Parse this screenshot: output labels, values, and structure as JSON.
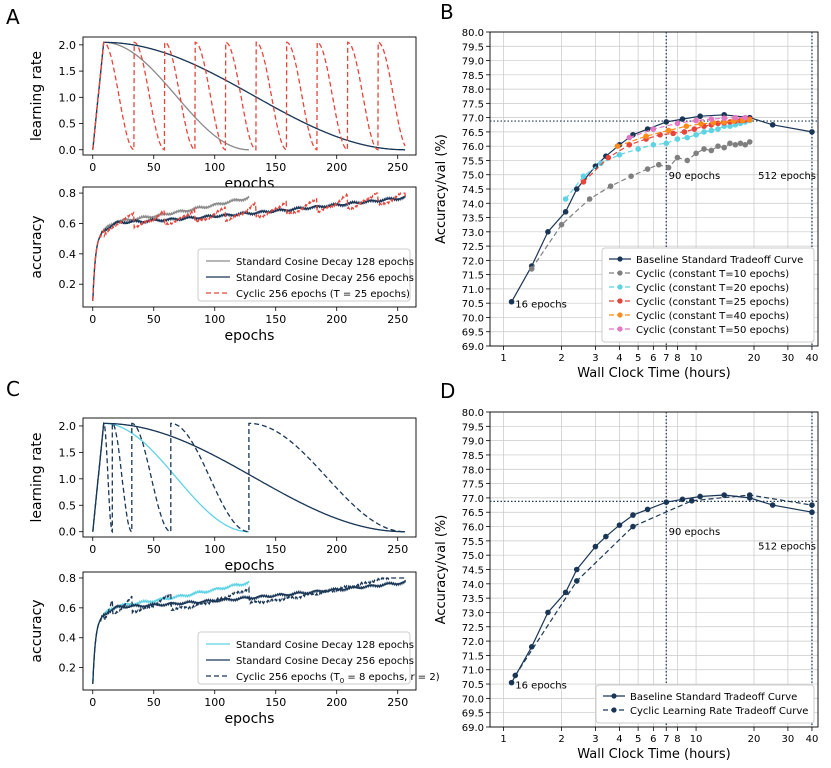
{
  "colors": {
    "navy": "#1a3656",
    "gray": "#8a8a8a",
    "red_dashed": "#e8443a",
    "cyan": "#5fd3e4",
    "cyc10": "#7f7f7f",
    "cyc20": "#5fd3e4",
    "cyc25": "#e8443a",
    "cyc40": "#ff8c1a",
    "cyc50": "#e377c2",
    "grid": "#c8c8c8",
    "vline": "#1a3656"
  },
  "panels": {
    "A": {
      "letter": "A"
    },
    "B": {
      "letter": "B"
    },
    "C": {
      "letter": "C"
    },
    "D": {
      "letter": "D"
    }
  },
  "chart_data": [
    {
      "id": "A_top",
      "type": "line",
      "xlabel": "epochs",
      "ylabel": "learning rate",
      "xlim": [
        -8,
        265
      ],
      "ylim": [
        -0.1,
        2.15
      ],
      "xticks": [
        0,
        50,
        100,
        150,
        200,
        250
      ],
      "yticks": [
        0.0,
        0.5,
        1.0,
        1.5,
        2.0
      ],
      "ytick_labels": [
        "0.0",
        "0.5",
        "1.0",
        "1.5",
        "2.0"
      ],
      "series": [
        {
          "name": "Standard Cosine Decay 128 epochs",
          "kind": "cosine",
          "warmup": 9,
          "peak": 2.048,
          "end": 128,
          "color": "gray",
          "dash": "solid"
        },
        {
          "name": "Standard Cosine Decay 256 epochs",
          "kind": "cosine",
          "warmup": 9,
          "peak": 2.048,
          "end": 256,
          "color": "navy",
          "dash": "solid"
        },
        {
          "name": "Cyclic 256 epochs (T = 25 epochs)",
          "kind": "cyclic",
          "warmup": 9,
          "peak": 2.048,
          "end": 256,
          "period": 25,
          "color": "red_dashed",
          "dash": "dashed"
        }
      ]
    },
    {
      "id": "A_bottom",
      "type": "line",
      "xlabel": "epochs",
      "ylabel": "accuracy",
      "xlim": [
        -8,
        265
      ],
      "ylim": [
        0.05,
        0.84
      ],
      "xticks": [
        0,
        50,
        100,
        150,
        200,
        250
      ],
      "yticks": [
        0.2,
        0.4,
        0.6,
        0.8
      ],
      "ytick_labels": [
        "0.2",
        "0.4",
        "0.6",
        "0.8"
      ],
      "legend_position": "lower-right",
      "series": [
        {
          "name": "Standard Cosine Decay 128 epochs",
          "legend": "Standard Cosine Decay 128 epochs",
          "end": 128,
          "final": 0.77,
          "color": "gray",
          "dash": "solid"
        },
        {
          "name": "Standard Cosine Decay 256 epochs",
          "legend": "Standard Cosine Decay 256 epochs",
          "end": 256,
          "final": 0.77,
          "color": "navy",
          "dash": "solid"
        },
        {
          "name": "Cyclic 256 epochs (T = 25 epochs)",
          "legend": "Cyclic 256 epochs (T = 25 epochs)",
          "end": 256,
          "final": 0.77,
          "period": 25,
          "color": "red_dashed",
          "dash": "dashed"
        }
      ]
    },
    {
      "id": "C_top",
      "type": "line",
      "xlabel": "epochs",
      "ylabel": "learning rate",
      "xlim": [
        -8,
        265
      ],
      "ylim": [
        -0.1,
        2.15
      ],
      "xticks": [
        0,
        50,
        100,
        150,
        200,
        250
      ],
      "yticks": [
        0.0,
        0.5,
        1.0,
        1.5,
        2.0
      ],
      "ytick_labels": [
        "0.0",
        "0.5",
        "1.0",
        "1.5",
        "2.0"
      ],
      "series": [
        {
          "name": "Standard Cosine Decay 128 epochs",
          "kind": "cosine",
          "warmup": 9,
          "peak": 2.048,
          "end": 128,
          "color": "cyan",
          "dash": "solid"
        },
        {
          "name": "Standard Cosine Decay 256 epochs",
          "kind": "cosine",
          "warmup": 9,
          "peak": 2.048,
          "end": 256,
          "color": "navy",
          "dash": "solid"
        },
        {
          "name": "Cyclic 256 epochs (T0 = 8 epochs, r = 2)",
          "kind": "restarts",
          "warmup": 9,
          "peak": 2.048,
          "restarts": [
            16,
            32,
            64,
            128,
            256
          ],
          "color": "navy",
          "dash": "dashed"
        }
      ]
    },
    {
      "id": "C_bottom",
      "type": "line",
      "xlabel": "epochs",
      "ylabel": "accuracy",
      "xlim": [
        -8,
        265
      ],
      "ylim": [
        0.05,
        0.84
      ],
      "xticks": [
        0,
        50,
        100,
        150,
        200,
        250
      ],
      "yticks": [
        0.2,
        0.4,
        0.6,
        0.8
      ],
      "ytick_labels": [
        "0.2",
        "0.4",
        "0.6",
        "0.8"
      ],
      "legend_position": "lower-right",
      "series": [
        {
          "name": "Standard Cosine Decay 128 epochs",
          "legend": "Standard Cosine Decay 128 epochs",
          "end": 128,
          "final": 0.77,
          "color": "cyan",
          "dash": "solid"
        },
        {
          "name": "Standard Cosine Decay 256 epochs",
          "legend": "Standard Cosine Decay 256 epochs",
          "end": 256,
          "final": 0.77,
          "color": "navy",
          "dash": "solid"
        },
        {
          "name": "Cyclic 256 epochs (T0 = 8 epochs, r = 2)",
          "legend": "Cyclic 256 epochs (T",
          "legend_sub": "0",
          "legend_tail": " = 8 epochs, r = 2)",
          "end": 256,
          "final": 0.77,
          "restarts": [
            16,
            32,
            64,
            128
          ],
          "color": "navy",
          "dash": "dashed"
        }
      ]
    },
    {
      "id": "B",
      "type": "line",
      "xscale": "log",
      "xlabel": "Wall Clock Time (hours)",
      "ylabel": "Accuracy/val (%)",
      "xlim": [
        0.85,
        43
      ],
      "ylim": [
        69.0,
        80.0
      ],
      "xticks": [
        1,
        2,
        3,
        4,
        5,
        6,
        7,
        8,
        10,
        20,
        30,
        40
      ],
      "xtick_labels": [
        "1",
        "2",
        "3",
        "4",
        "5",
        "6",
        "7",
        "8",
        "10",
        "20",
        "30",
        "40"
      ],
      "yticks": [
        69.0,
        69.5,
        70.0,
        70.5,
        71.0,
        71.5,
        72.0,
        72.5,
        73.0,
        73.5,
        74.0,
        74.5,
        75.0,
        75.5,
        76.0,
        76.5,
        77.0,
        77.5,
        78.0,
        78.5,
        79.0,
        79.5,
        80.0
      ],
      "ytick_labels": [
        "69.0",
        "69.5",
        "70.0",
        "70.5",
        "71.0",
        "71.5",
        "72.0",
        "72.5",
        "73.0",
        "73.5",
        "74.0",
        "74.5",
        "75.0",
        "75.5",
        "76.0",
        "76.5",
        "77.0",
        "77.5",
        "78.0",
        "78.5",
        "79.0",
        "79.5",
        "80.0"
      ],
      "vlines": [
        7.0,
        40.0
      ],
      "hline": 76.88,
      "annotations": [
        {
          "text": "16 epochs",
          "x": 1.15,
          "y": 70.35
        },
        {
          "text": "90 epochs",
          "x": 7.2,
          "y": 74.85
        },
        {
          "text": "512 epochs",
          "x": 21.0,
          "y": 74.85
        }
      ],
      "legend_position": "lower-right",
      "series": [
        {
          "name": "Baseline Standard Tradeoff Curve",
          "color": "navy",
          "dash": "solid",
          "x": [
            1.1,
            1.4,
            1.7,
            2.1,
            2.4,
            3.0,
            3.4,
            4.0,
            4.7,
            5.6,
            7.0,
            8.5,
            10.5,
            14.0,
            19.0,
            25.0,
            40.0
          ],
          "y": [
            70.55,
            71.8,
            73.0,
            73.7,
            74.5,
            75.3,
            75.65,
            76.05,
            76.4,
            76.6,
            76.85,
            76.95,
            77.05,
            77.1,
            77.0,
            76.75,
            76.5
          ]
        },
        {
          "name": "Cyclic (constant T=10 epochs)",
          "color": "cyc10",
          "dash": "dashed",
          "x": [
            1.4,
            2.0,
            2.8,
            3.6,
            4.6,
            5.6,
            6.4,
            7.2,
            8.0,
            9.0,
            10.0,
            11.0,
            12.0,
            13.0,
            14.0,
            15.0,
            16.0,
            17.0,
            18.0,
            19.0
          ],
          "y": [
            71.7,
            73.25,
            74.15,
            74.6,
            74.95,
            75.2,
            75.35,
            75.25,
            75.6,
            75.5,
            75.75,
            75.9,
            75.85,
            76.0,
            75.95,
            76.1,
            76.05,
            76.1,
            76.05,
            76.15
          ]
        },
        {
          "name": "Cyclic (constant T=20 epochs)",
          "color": "cyc20",
          "dash": "dashed",
          "x": [
            2.1,
            2.6,
            3.2,
            4.0,
            5.0,
            6.0,
            7.0,
            8.0,
            9.0,
            10.0,
            11.0,
            12.0,
            13.0,
            14.0,
            15.0,
            16.0,
            17.0,
            18.0,
            19.0
          ],
          "y": [
            74.15,
            74.95,
            75.4,
            75.7,
            75.9,
            76.05,
            76.1,
            76.25,
            76.3,
            76.4,
            76.5,
            76.55,
            76.6,
            76.7,
            76.7,
            76.75,
            76.8,
            76.85,
            76.9
          ]
        },
        {
          "name": "Cyclic (constant T=25 epochs)",
          "color": "cyc25",
          "dash": "dashed",
          "x": [
            2.6,
            3.5,
            4.5,
            5.5,
            6.5,
            7.6,
            8.7,
            9.8,
            11.0,
            12.0,
            13.0,
            14.0,
            15.0,
            16.0,
            17.0,
            18.0,
            19.0
          ],
          "y": [
            74.75,
            75.6,
            76.05,
            76.25,
            76.4,
            76.45,
            76.5,
            76.6,
            76.7,
            76.75,
            76.8,
            76.82,
            76.85,
            76.88,
            76.9,
            76.92,
            76.95
          ]
        },
        {
          "name": "Cyclic (constant T=40 epochs)",
          "color": "cyc40",
          "dash": "dashed",
          "x": [
            3.9,
            5.5,
            7.2,
            8.9,
            10.6,
            12.3,
            14.0,
            15.7,
            17.4,
            19.0
          ],
          "y": [
            76.0,
            76.35,
            76.55,
            76.7,
            76.78,
            76.82,
            76.85,
            76.88,
            76.9,
            76.92
          ]
        },
        {
          "name": "Cyclic (constant T=50 epochs)",
          "color": "cyc50",
          "dash": "dashed",
          "x": [
            4.5,
            6.0,
            8.0,
            10.0,
            12.0,
            14.0,
            16.0,
            18.0
          ],
          "y": [
            76.3,
            76.6,
            76.8,
            76.9,
            76.95,
            76.98,
            77.0,
            77.0
          ]
        }
      ]
    },
    {
      "id": "D",
      "type": "line",
      "xscale": "log",
      "xlabel": "Wall Clock Time (hours)",
      "ylabel": "Accuracy/val (%)",
      "xlim": [
        0.85,
        43
      ],
      "ylim": [
        69.0,
        80.0
      ],
      "xticks": [
        1,
        2,
        3,
        4,
        5,
        6,
        7,
        8,
        10,
        20,
        30,
        40
      ],
      "xtick_labels": [
        "1",
        "2",
        "3",
        "4",
        "5",
        "6",
        "7",
        "8",
        "10",
        "20",
        "30",
        "40"
      ],
      "yticks": [
        69.0,
        69.5,
        70.0,
        70.5,
        71.0,
        71.5,
        72.0,
        72.5,
        73.0,
        73.5,
        74.0,
        74.5,
        75.0,
        75.5,
        76.0,
        76.5,
        77.0,
        77.5,
        78.0,
        78.5,
        79.0,
        79.5,
        80.0
      ],
      "ytick_labels": [
        "69.0",
        "69.5",
        "70.0",
        "70.5",
        "71.0",
        "71.5",
        "72.0",
        "72.5",
        "73.0",
        "73.5",
        "74.0",
        "74.5",
        "75.0",
        "75.5",
        "76.0",
        "76.5",
        "77.0",
        "77.5",
        "78.0",
        "78.5",
        "79.0",
        "79.5",
        "80.0"
      ],
      "vlines": [
        7.0,
        40.0
      ],
      "hline": 76.88,
      "annotations": [
        {
          "text": "16 epochs",
          "x": 1.15,
          "y": 70.35
        },
        {
          "text": "90 epochs",
          "x": 7.2,
          "y": 75.7
        },
        {
          "text": "512 epochs",
          "x": 21.0,
          "y": 75.2
        }
      ],
      "legend_position": "lower-right",
      "series": [
        {
          "name": "Baseline Standard Tradeoff Curve",
          "color": "navy",
          "dash": "solid",
          "x": [
            1.1,
            1.4,
            1.7,
            2.1,
            2.4,
            3.0,
            3.4,
            4.0,
            4.7,
            5.6,
            7.0,
            8.5,
            10.5,
            14.0,
            19.0,
            25.0,
            40.0
          ],
          "y": [
            70.55,
            71.8,
            73.0,
            73.7,
            74.5,
            75.3,
            75.65,
            76.05,
            76.4,
            76.6,
            76.85,
            76.95,
            77.05,
            77.1,
            77.0,
            76.75,
            76.5
          ]
        },
        {
          "name": "Cyclic Learning Rate Tradeoff Curve",
          "color": "navy",
          "dash": "dashed",
          "x": [
            1.15,
            2.4,
            4.7,
            9.5,
            19.0,
            40.0
          ],
          "y": [
            70.8,
            74.1,
            76.0,
            76.9,
            77.1,
            76.75
          ]
        }
      ]
    }
  ]
}
